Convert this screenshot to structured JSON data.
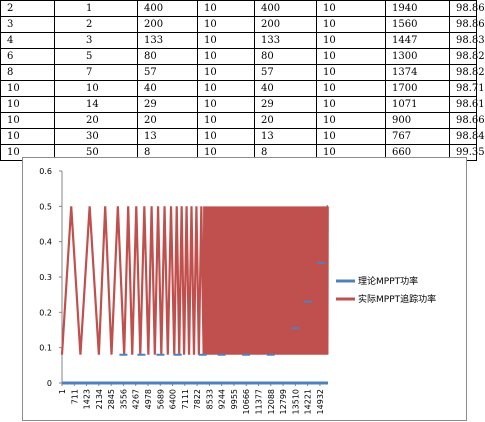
{
  "table": {
    "rows": [
      [
        "2",
        "1",
        "400",
        "10",
        "400",
        "10",
        "1940",
        "98.86"
      ],
      [
        "3",
        "2",
        "200",
        "10",
        "200",
        "10",
        "1560",
        "98.86"
      ],
      [
        "4",
        "3",
        "133",
        "10",
        "133",
        "10",
        "1447",
        "98.83"
      ],
      [
        "6",
        "5",
        "80",
        "10",
        "80",
        "10",
        "1300",
        "98.82"
      ],
      [
        "8",
        "7",
        "57",
        "10",
        "57",
        "10",
        "1374",
        "98.82"
      ],
      [
        "10",
        "10",
        "40",
        "10",
        "40",
        "10",
        "1700",
        "98.71"
      ],
      [
        "10",
        "14",
        "29",
        "10",
        "29",
        "10",
        "1071",
        "98.61"
      ],
      [
        "10",
        "20",
        "20",
        "10",
        "20",
        "10",
        "900",
        "98.66"
      ],
      [
        "10",
        "30",
        "13",
        "10",
        "13",
        "10",
        "767",
        "98.84"
      ],
      [
        "10",
        "50",
        "8",
        "10",
        "8",
        "10",
        "660",
        "99.35"
      ]
    ]
  },
  "chart_data": {
    "type": "line",
    "title": "",
    "xlabel": "",
    "ylabel": "",
    "ylim": [
      0,
      0.6
    ],
    "y_ticks": [
      "0",
      "0.1",
      "0.2",
      "0.3",
      "0.4",
      "0.5",
      "0.6"
    ],
    "x_ticks": [
      "1",
      "711",
      "1423",
      "2134",
      "2845",
      "3556",
      "4267",
      "4978",
      "5689",
      "6400",
      "7111",
      "7822",
      "8533",
      "9244",
      "9955",
      "10666",
      "11377",
      "12088",
      "12799",
      "13510",
      "14221",
      "14932"
    ],
    "xlim": [
      1,
      15400
    ],
    "grid": false,
    "legend_position": "right",
    "triangle_wave": {
      "min": 0.08,
      "max": 0.5,
      "segments": [
        {
          "x_start": 1,
          "x_end": 2135,
          "period": 1067
        },
        {
          "x_start": 2135,
          "x_end": 3600,
          "period": 733
        },
        {
          "x_start": 3600,
          "x_end": 5000,
          "period": 467
        },
        {
          "x_start": 5000,
          "x_end": 6500,
          "period": 375
        },
        {
          "x_start": 6500,
          "x_end": 8200,
          "period": 285
        },
        {
          "x_start": 8200,
          "x_end": 9244,
          "period": 70
        },
        {
          "x_start": 9244,
          "x_end": 15400,
          "period": 40
        }
      ]
    },
    "theory_markers": [
      {
        "x": 3556,
        "y": 0.08
      },
      {
        "x": 4600,
        "y": 0.08
      },
      {
        "x": 5700,
        "y": 0.08
      },
      {
        "x": 6700,
        "y": 0.08
      },
      {
        "x": 8150,
        "y": 0.08
      },
      {
        "x": 9244,
        "y": 0.08
      },
      {
        "x": 10660,
        "y": 0.08
      },
      {
        "x": 12088,
        "y": 0.08
      },
      {
        "x": 13510,
        "y": 0.155
      },
      {
        "x": 14221,
        "y": 0.23
      },
      {
        "x": 15000,
        "y": 0.34
      }
    ],
    "series": [
      {
        "name": "理论MPPT功率",
        "color": "#4f81bd"
      },
      {
        "name": "实际MPPT追踪功率",
        "color": "#c0504d"
      }
    ]
  }
}
